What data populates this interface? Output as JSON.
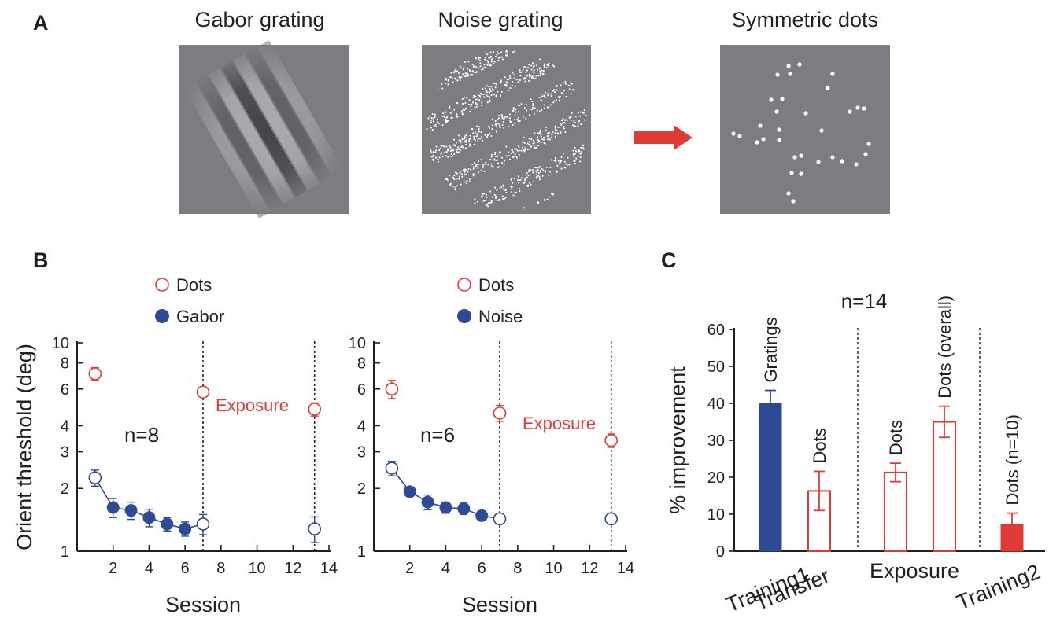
{
  "panel_labels": {
    "a": "A",
    "b": "B",
    "c": "C"
  },
  "stimuli": {
    "gabor_title": "Gabor grating",
    "noise_title": "Noise grating",
    "dots_title": "Symmetric dots",
    "arrow_icon": "right-arrow-icon"
  },
  "colors": {
    "blue": "#2e4a94",
    "red": "#e03a34",
    "stim_gray": "#7c7d80"
  },
  "chart_data": [
    {
      "type": "scatter",
      "panel": "B-left",
      "xlabel": "Session",
      "ylabel": "Orient threshold (deg)",
      "y_scale": "log",
      "ylim": [
        1,
        10
      ],
      "xlim": [
        0,
        14
      ],
      "x_ticks": [
        "2",
        "4",
        "6",
        "8",
        "10",
        "12",
        "14"
      ],
      "y_ticks": [
        "1",
        "2",
        "3",
        "4",
        "6",
        "8",
        "10"
      ],
      "vlines": [
        7,
        13.2
      ],
      "annotation": "n=8",
      "exposure_label": "Exposure",
      "legend": [
        {
          "label": "Dots",
          "marker": "open",
          "color": "#e03a34"
        },
        {
          "label": "Gabor",
          "marker": "filled",
          "color": "#2e4a94"
        }
      ],
      "series": [
        {
          "name": "Dots",
          "points": [
            {
              "x": 1,
              "y": 7.1,
              "err": 0.5
            },
            {
              "x": 7,
              "y": 5.8,
              "err": 0.3
            },
            {
              "x": 13.2,
              "y": 4.8,
              "err": 0.35
            }
          ]
        },
        {
          "name": "Gabor",
          "points": [
            {
              "x": 1,
              "y": 2.25,
              "err": 0.2,
              "open": true
            },
            {
              "x": 2,
              "y": 1.62,
              "err": 0.17
            },
            {
              "x": 3,
              "y": 1.57,
              "err": 0.15
            },
            {
              "x": 4,
              "y": 1.45,
              "err": 0.14
            },
            {
              "x": 5,
              "y": 1.35,
              "err": 0.1
            },
            {
              "x": 6,
              "y": 1.28,
              "err": 0.1
            },
            {
              "x": 7,
              "y": 1.35,
              "err": 0.15,
              "open": true
            },
            {
              "x": 13.2,
              "y": 1.28,
              "err": 0.18,
              "open": true
            }
          ],
          "connect_to": 7
        }
      ]
    },
    {
      "type": "scatter",
      "panel": "B-right",
      "xlabel": "Session",
      "y_scale": "log",
      "ylim": [
        1,
        10
      ],
      "xlim": [
        0,
        14
      ],
      "x_ticks": [
        "2",
        "4",
        "6",
        "8",
        "10",
        "12",
        "14"
      ],
      "y_ticks": [
        "1",
        "2",
        "3",
        "4",
        "6",
        "8",
        "10"
      ],
      "vlines": [
        7,
        13.2
      ],
      "annotation": "n=6",
      "exposure_label": "Exposure",
      "legend": [
        {
          "label": "Dots",
          "marker": "open",
          "color": "#e03a34"
        },
        {
          "label": "Noise",
          "marker": "filled",
          "color": "#2e4a94"
        }
      ],
      "series": [
        {
          "name": "Dots",
          "points": [
            {
              "x": 1,
              "y": 6.0,
              "err": 0.6
            },
            {
              "x": 7,
              "y": 4.6,
              "err": 0.4
            },
            {
              "x": 13.2,
              "y": 3.4,
              "err": 0.25
            }
          ]
        },
        {
          "name": "Noise",
          "points": [
            {
              "x": 1,
              "y": 2.5,
              "err": 0.2,
              "open": true
            },
            {
              "x": 2,
              "y": 1.93,
              "err": 0.1
            },
            {
              "x": 3,
              "y": 1.72,
              "err": 0.14
            },
            {
              "x": 4,
              "y": 1.62,
              "err": 0.1
            },
            {
              "x": 5,
              "y": 1.6,
              "err": 0.1
            },
            {
              "x": 6,
              "y": 1.48,
              "err": 0.08
            },
            {
              "x": 7,
              "y": 1.43,
              "err": 0.05,
              "open": true
            },
            {
              "x": 13.2,
              "y": 1.43,
              "err": 0.08,
              "open": true
            }
          ],
          "connect_to": 7
        }
      ]
    },
    {
      "type": "bar",
      "panel": "C",
      "ylabel": "% improvement",
      "ylim": [
        0,
        60
      ],
      "y_ticks": [
        "0",
        "10",
        "20",
        "30",
        "40",
        "50",
        "60"
      ],
      "annotation": "n=14",
      "group_labels": [
        "Training1",
        "Transfer",
        "Exposure",
        "Training2"
      ],
      "bars": [
        {
          "label": "Gratings",
          "value": 40,
          "err": 3.5,
          "style": "filled",
          "color": "#2e4a94"
        },
        {
          "label": "Dots",
          "value": 16.3,
          "err": 5.3,
          "style": "open",
          "color": "#e03a34"
        },
        {
          "label": "Dots",
          "value": 21.3,
          "err": 2.5,
          "style": "open",
          "color": "#e03a34"
        },
        {
          "label": "Dots (overall)",
          "value": 35,
          "err": 4.2,
          "style": "open",
          "color": "#e03a34"
        },
        {
          "label": "Dots (n=10)",
          "value": 7.3,
          "err": 3,
          "style": "filled",
          "color": "#e03a34"
        }
      ]
    }
  ]
}
